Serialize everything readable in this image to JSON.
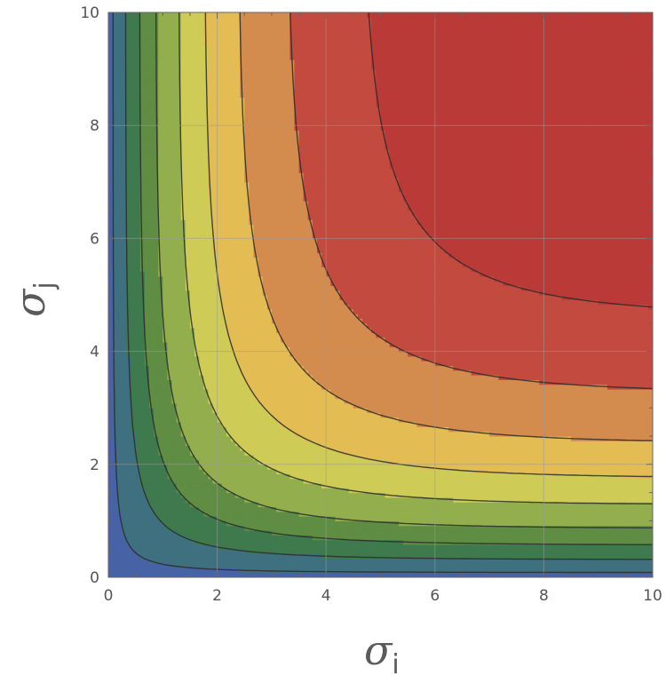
{
  "chart_data": {
    "type": "contour",
    "title": "",
    "xlabel": {
      "symbol": "σ",
      "sub": "i"
    },
    "ylabel": {
      "symbol": "σ",
      "sub": "j"
    },
    "xlim": [
      0,
      10
    ],
    "ylim": [
      0,
      10
    ],
    "x_ticks": [
      "0",
      "2",
      "4",
      "6",
      "8",
      "10"
    ],
    "y_ticks": [
      "0",
      "2",
      "4",
      "6",
      "8",
      "10"
    ],
    "grid": true,
    "legend": "none",
    "colormap": [
      "#4763A6",
      "#3F7080",
      "#3E7A4D",
      "#5E8D43",
      "#93AE4C",
      "#CECB56",
      "#E3BD54",
      "#D38C4E",
      "#C24A3E",
      "#B93A37"
    ],
    "contour_levels": 9
  }
}
